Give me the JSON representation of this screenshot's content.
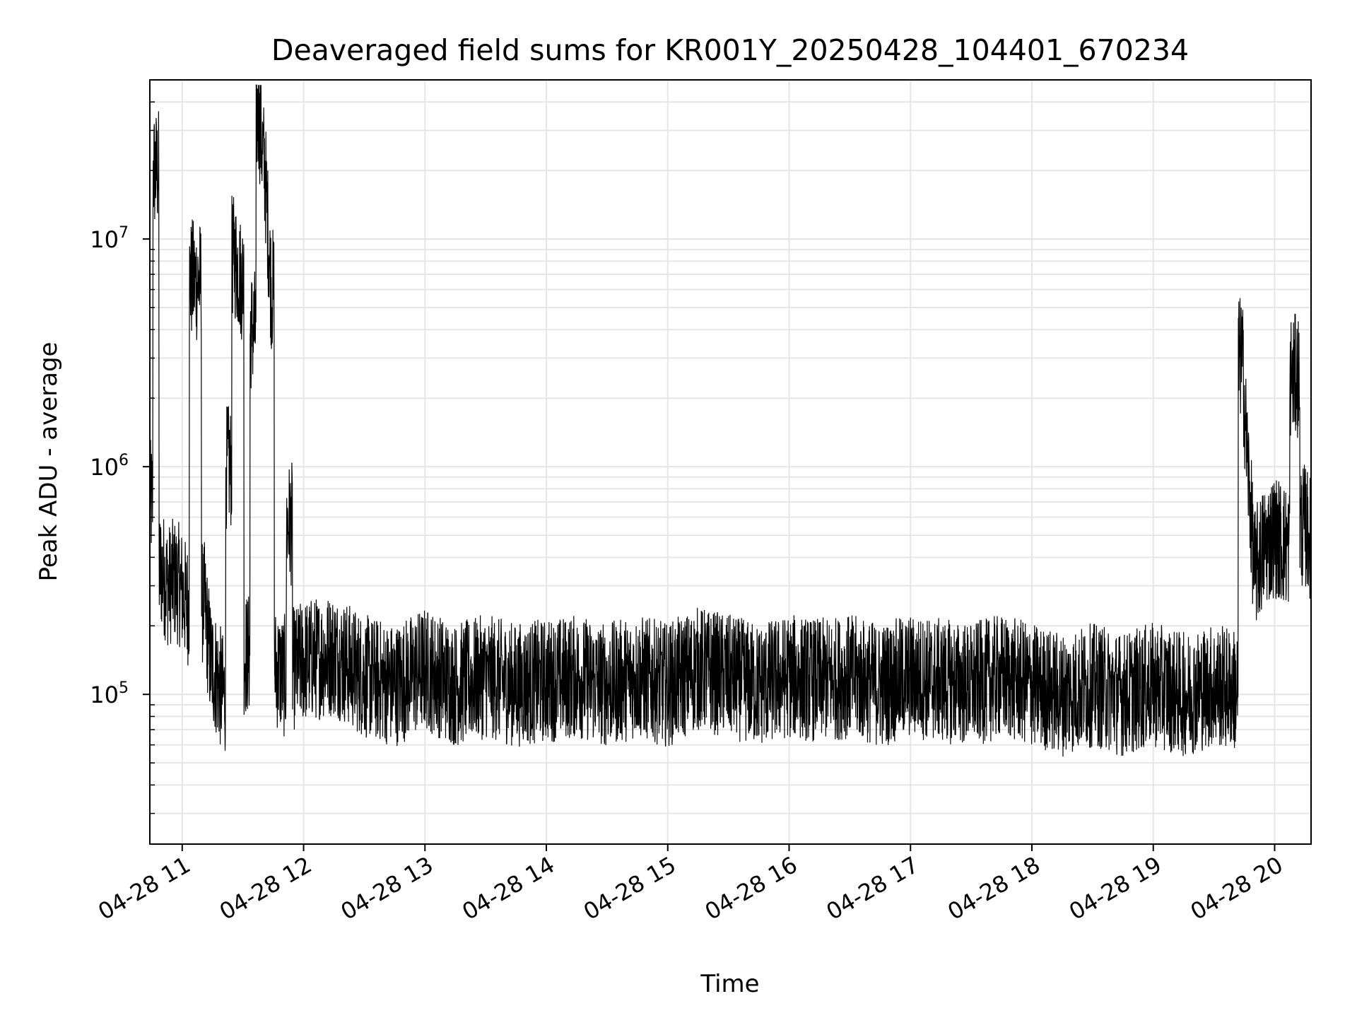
{
  "chart_data": {
    "type": "line",
    "title": "Deaveraged field sums for KR001Y_20250428_104401_670234",
    "xlabel": "Time",
    "ylabel": "Peak ADU - average",
    "y_scale": "log",
    "ylim": [
      22000,
      50000000
    ],
    "xlim": [
      "04-28 10:44",
      "04-28 20:18"
    ],
    "grid": true,
    "line_color": "#000000",
    "grid_color": "#e6e6e6",
    "x_ticks": [
      {
        "time": "04-28 11:00",
        "label": "04-28 11"
      },
      {
        "time": "04-28 12:00",
        "label": "04-28 12"
      },
      {
        "time": "04-28 13:00",
        "label": "04-28 13"
      },
      {
        "time": "04-28 14:00",
        "label": "04-28 14"
      },
      {
        "time": "04-28 15:00",
        "label": "04-28 15"
      },
      {
        "time": "04-28 16:00",
        "label": "04-28 16"
      },
      {
        "time": "04-28 17:00",
        "label": "04-28 17"
      },
      {
        "time": "04-28 18:00",
        "label": "04-28 18"
      },
      {
        "time": "04-28 19:00",
        "label": "04-28 19"
      },
      {
        "time": "04-28 20:00",
        "label": "04-28 20"
      }
    ],
    "y_ticks": [
      {
        "value": 100000,
        "base": "10",
        "exp": "5"
      },
      {
        "value": 1000000,
        "base": "10",
        "exp": "6"
      },
      {
        "value": 10000000,
        "base": "10",
        "exp": "7"
      }
    ],
    "series": [
      {
        "x": [
          "04-28 10:44",
          "04-28 10:47",
          "04-28 10:50",
          "04-28 10:53",
          "04-28 10:56",
          "04-28 10:59",
          "04-28 11:02",
          "04-28 11:05",
          "04-28 11:08",
          "04-28 11:11",
          "04-28 11:14",
          "04-28 11:17",
          "04-28 11:20",
          "04-28 11:23",
          "04-28 11:26",
          "04-28 11:29",
          "04-28 11:32",
          "04-28 11:35",
          "04-28 11:38",
          "04-28 11:41",
          "04-28 11:44",
          "04-28 11:47",
          "04-28 11:50",
          "04-28 11:53",
          "04-28 11:56",
          "04-28 12:00",
          "04-28 12:15",
          "04-28 12:30",
          "04-28 12:45",
          "04-28 13:00",
          "04-28 13:15",
          "04-28 13:30",
          "04-28 13:45",
          "04-28 14:00",
          "04-28 14:15",
          "04-28 14:30",
          "04-28 14:45",
          "04-28 15:00",
          "04-28 15:15",
          "04-28 15:30",
          "04-28 15:45",
          "04-28 16:00",
          "04-28 16:15",
          "04-28 16:30",
          "04-28 16:45",
          "04-28 17:00",
          "04-28 17:15",
          "04-28 17:30",
          "04-28 17:45",
          "04-28 18:00",
          "04-28 18:15",
          "04-28 18:30",
          "04-28 18:45",
          "04-28 19:00",
          "04-28 19:15",
          "04-28 19:30",
          "04-28 19:40",
          "04-28 19:44",
          "04-28 19:46",
          "04-28 19:50",
          "04-28 19:55",
          "04-28 20:00",
          "04-28 20:05",
          "04-28 20:10",
          "04-28 20:15",
          "04-28 20:18"
        ],
        "values": [
          700000,
          20000000,
          350000,
          300000,
          320000,
          300000,
          250000,
          6600000,
          6500000,
          250000,
          140000,
          120000,
          100000,
          1000000,
          8300000,
          6700000,
          150000,
          4000000,
          35000000,
          19000000,
          6000000,
          130000,
          120000,
          560000,
          130000,
          140000,
          150000,
          120000,
          110000,
          130000,
          110000,
          120000,
          110000,
          115000,
          120000,
          110000,
          120000,
          110000,
          130000,
          120000,
          110000,
          120000,
          115000,
          120000,
          110000,
          120000,
          115000,
          110000,
          120000,
          110000,
          100000,
          110000,
          100000,
          110000,
          100000,
          110000,
          105000,
          3000000,
          1300000,
          350000,
          450000,
          500000,
          450000,
          2500000,
          550000,
          480000
        ]
      }
    ]
  }
}
